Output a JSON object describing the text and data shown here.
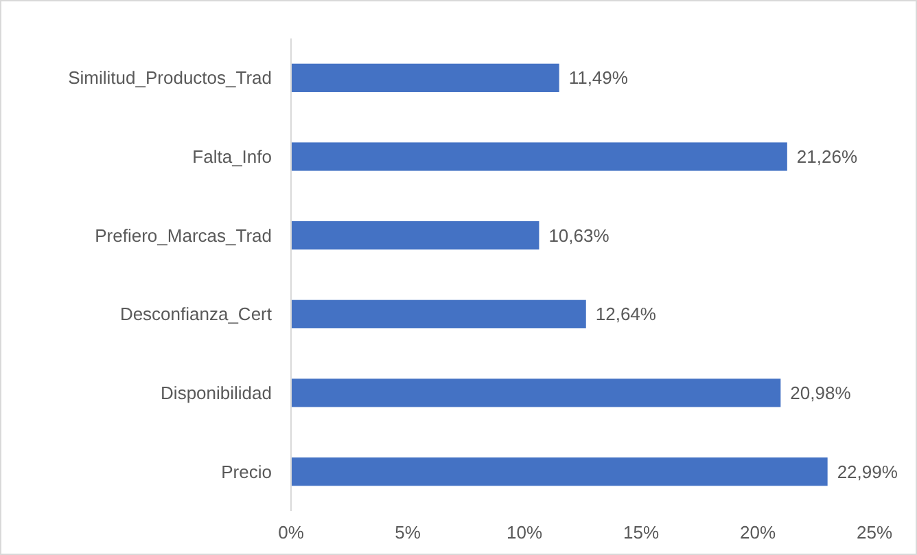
{
  "chart_data": {
    "type": "bar",
    "orientation": "horizontal",
    "categories": [
      "Similitud_Productos_Trad",
      "Falta_Info",
      "Prefiero_Marcas_Trad",
      "Desconfianza_Cert",
      "Disponibilidad",
      "Precio"
    ],
    "values": [
      11.49,
      21.26,
      10.63,
      12.64,
      20.98,
      22.99
    ],
    "value_labels": [
      "11,49%",
      "21,26%",
      "10,63%",
      "12,64%",
      "20,98%",
      "22,99%"
    ],
    "color": "#4472c4",
    "xlim": [
      0,
      25
    ],
    "xticks": [
      {
        "value": 0,
        "label": "0%"
      },
      {
        "value": 5,
        "label": "5%"
      },
      {
        "value": 10,
        "label": "10%"
      },
      {
        "value": 15,
        "label": "15%"
      },
      {
        "value": 20,
        "label": "20%"
      },
      {
        "value": 25,
        "label": "25%"
      }
    ],
    "data_labels": false
  }
}
